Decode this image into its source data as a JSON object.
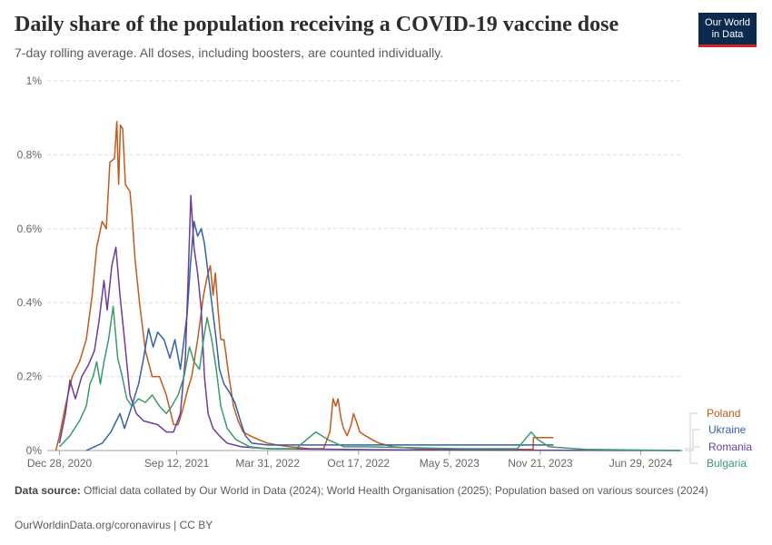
{
  "header": {
    "title": "Daily share of the population receiving a COVID-19 vaccine dose",
    "subtitle": "7-day rolling average. All doses, including boosters, are counted individually.",
    "logo_line1": "Our World",
    "logo_line2": "in Data"
  },
  "footer": {
    "source_label": "Data source:",
    "source_text": "Official data collated by Our World in Data (2024); World Health Organisation (2025); Population based on various sources (2024)",
    "credit": "OurWorldinData.org/coronavirus | CC BY"
  },
  "chart_data": {
    "type": "line",
    "title": "Daily share of the population receiving a COVID-19 vaccine dose",
    "subtitle": "7-day rolling average. All doses, including boosters, are counted individually.",
    "xlabel": "",
    "ylabel": "",
    "y_unit": "%",
    "ylim": [
      0,
      1
    ],
    "xlim": [
      "2020-12-01",
      "2024-09-30"
    ],
    "yticks": [
      0,
      0.2,
      0.4,
      0.6,
      0.8,
      1
    ],
    "ytick_labels": [
      "0%",
      "0.2%",
      "0.4%",
      "0.6%",
      "0.8%",
      "1%"
    ],
    "xticks": [
      "2020-12-28",
      "2021-09-12",
      "2022-03-31",
      "2022-10-17",
      "2023-05-05",
      "2023-11-21",
      "2024-06-29"
    ],
    "xtick_labels": [
      "Dec 28, 2020",
      "Sep 12, 2021",
      "Mar 31, 2022",
      "Oct 17, 2022",
      "May 5, 2023",
      "Nov 21, 2023",
      "Jun 29, 2024"
    ],
    "grid": "horizontal dashed",
    "legend": "right, labels at line ends",
    "series": [
      {
        "name": "Poland",
        "color": "#c15a1c",
        "points": [
          [
            "2020-12-20",
            0.0
          ],
          [
            "2020-12-28",
            0.04
          ],
          [
            "2021-01-10",
            0.12
          ],
          [
            "2021-01-25",
            0.2
          ],
          [
            "2021-02-10",
            0.24
          ],
          [
            "2021-02-25",
            0.3
          ],
          [
            "2021-03-10",
            0.42
          ],
          [
            "2021-03-20",
            0.55
          ],
          [
            "2021-04-01",
            0.62
          ],
          [
            "2021-04-10",
            0.6
          ],
          [
            "2021-04-18",
            0.78
          ],
          [
            "2021-04-28",
            0.79
          ],
          [
            "2021-05-03",
            0.89
          ],
          [
            "2021-05-07",
            0.72
          ],
          [
            "2021-05-11",
            0.88
          ],
          [
            "2021-05-16",
            0.87
          ],
          [
            "2021-05-22",
            0.72
          ],
          [
            "2021-06-01",
            0.7
          ],
          [
            "2021-06-06",
            0.63
          ],
          [
            "2021-06-12",
            0.52
          ],
          [
            "2021-06-22",
            0.4
          ],
          [
            "2021-07-05",
            0.27
          ],
          [
            "2021-07-20",
            0.2
          ],
          [
            "2021-08-05",
            0.2
          ],
          [
            "2021-08-20",
            0.15
          ],
          [
            "2021-09-05",
            0.07
          ],
          [
            "2021-09-15",
            0.07
          ],
          [
            "2021-09-25",
            0.11
          ],
          [
            "2021-10-05",
            0.16
          ],
          [
            "2021-10-15",
            0.2
          ],
          [
            "2021-10-28",
            0.3
          ],
          [
            "2021-11-10",
            0.42
          ],
          [
            "2021-11-18",
            0.47
          ],
          [
            "2021-11-25",
            0.5
          ],
          [
            "2021-12-01",
            0.42
          ],
          [
            "2021-12-06",
            0.48
          ],
          [
            "2021-12-12",
            0.38
          ],
          [
            "2021-12-18",
            0.3
          ],
          [
            "2021-12-25",
            0.3
          ],
          [
            "2022-01-05",
            0.2
          ],
          [
            "2022-01-15",
            0.12
          ],
          [
            "2022-01-25",
            0.08
          ],
          [
            "2022-02-05",
            0.05
          ],
          [
            "2022-02-20",
            0.04
          ],
          [
            "2022-03-10",
            0.03
          ],
          [
            "2022-03-31",
            0.02
          ],
          [
            "2022-04-20",
            0.015
          ],
          [
            "2022-05-20",
            0.01
          ],
          [
            "2022-07-01",
            0.005
          ],
          [
            "2022-08-01",
            0.005
          ],
          [
            "2022-08-15",
            0.05
          ],
          [
            "2022-08-22",
            0.14
          ],
          [
            "2022-08-28",
            0.12
          ],
          [
            "2022-09-02",
            0.14
          ],
          [
            "2022-09-08",
            0.09
          ],
          [
            "2022-09-14",
            0.06
          ],
          [
            "2022-09-22",
            0.04
          ],
          [
            "2022-10-01",
            0.07
          ],
          [
            "2022-10-06",
            0.1
          ],
          [
            "2022-10-12",
            0.08
          ],
          [
            "2022-10-20",
            0.05
          ],
          [
            "2022-11-01",
            0.04
          ],
          [
            "2022-11-15",
            0.03
          ],
          [
            "2022-12-01",
            0.02
          ],
          [
            "2023-01-01",
            0.01
          ],
          [
            "2023-03-01",
            0.005
          ],
          [
            "2023-06-01",
            0.003
          ],
          [
            "2023-09-01",
            0.003
          ],
          [
            "2023-11-05",
            0.003
          ],
          [
            "2023-11-06",
            0.035
          ],
          [
            "2023-12-20",
            0.035
          ]
        ]
      },
      {
        "name": "Ukraine",
        "color": "#3360a9",
        "points": [
          [
            "2021-02-25",
            0.0
          ],
          [
            "2021-04-01",
            0.02
          ],
          [
            "2021-04-20",
            0.05
          ],
          [
            "2021-05-10",
            0.1
          ],
          [
            "2021-05-20",
            0.06
          ],
          [
            "2021-06-05",
            0.12
          ],
          [
            "2021-06-20",
            0.18
          ],
          [
            "2021-07-01",
            0.25
          ],
          [
            "2021-07-12",
            0.33
          ],
          [
            "2021-07-22",
            0.28
          ],
          [
            "2021-08-01",
            0.32
          ],
          [
            "2021-08-15",
            0.3
          ],
          [
            "2021-08-28",
            0.25
          ],
          [
            "2021-09-08",
            0.3
          ],
          [
            "2021-09-20",
            0.22
          ],
          [
            "2021-09-28",
            0.3
          ],
          [
            "2021-10-05",
            0.37
          ],
          [
            "2021-10-12",
            0.5
          ],
          [
            "2021-10-20",
            0.62
          ],
          [
            "2021-10-28",
            0.58
          ],
          [
            "2021-11-05",
            0.6
          ],
          [
            "2021-11-12",
            0.56
          ],
          [
            "2021-11-20",
            0.48
          ],
          [
            "2021-11-28",
            0.4
          ],
          [
            "2021-12-06",
            0.32
          ],
          [
            "2021-12-15",
            0.22
          ],
          [
            "2021-12-25",
            0.18
          ],
          [
            "2022-01-05",
            0.16
          ],
          [
            "2022-01-18",
            0.13
          ],
          [
            "2022-01-30",
            0.08
          ],
          [
            "2022-02-10",
            0.04
          ],
          [
            "2022-02-24",
            0.02
          ],
          [
            "2022-03-31",
            0.015
          ],
          [
            "2022-12-01",
            0.015
          ],
          [
            "2023-12-20",
            0.015
          ]
        ]
      },
      {
        "name": "Romania",
        "color": "#6a3d9a",
        "points": [
          [
            "2020-12-28",
            0.02
          ],
          [
            "2021-01-10",
            0.1
          ],
          [
            "2021-01-20",
            0.19
          ],
          [
            "2021-02-01",
            0.14
          ],
          [
            "2021-02-15",
            0.2
          ],
          [
            "2021-03-01",
            0.23
          ],
          [
            "2021-03-15",
            0.27
          ],
          [
            "2021-03-25",
            0.35
          ],
          [
            "2021-04-05",
            0.46
          ],
          [
            "2021-04-12",
            0.38
          ],
          [
            "2021-04-22",
            0.5
          ],
          [
            "2021-05-01",
            0.55
          ],
          [
            "2021-05-10",
            0.42
          ],
          [
            "2021-05-20",
            0.3
          ],
          [
            "2021-06-01",
            0.15
          ],
          [
            "2021-06-15",
            0.1
          ],
          [
            "2021-07-01",
            0.08
          ],
          [
            "2021-08-01",
            0.07
          ],
          [
            "2021-08-20",
            0.05
          ],
          [
            "2021-09-05",
            0.05
          ],
          [
            "2021-09-20",
            0.1
          ],
          [
            "2021-10-01",
            0.25
          ],
          [
            "2021-10-08",
            0.5
          ],
          [
            "2021-10-13",
            0.69
          ],
          [
            "2021-10-20",
            0.55
          ],
          [
            "2021-10-28",
            0.48
          ],
          [
            "2021-11-05",
            0.38
          ],
          [
            "2021-11-12",
            0.2
          ],
          [
            "2021-11-20",
            0.1
          ],
          [
            "2021-12-01",
            0.06
          ],
          [
            "2021-12-15",
            0.04
          ],
          [
            "2022-01-01",
            0.02
          ],
          [
            "2022-02-01",
            0.01
          ],
          [
            "2022-04-01",
            0.005
          ],
          [
            "2023-01-01",
            0.002
          ],
          [
            "2024-09-25",
            0.0
          ]
        ]
      },
      {
        "name": "Bulgaria",
        "color": "#3b9a6c",
        "points": [
          [
            "2020-12-28",
            0.01
          ],
          [
            "2021-01-20",
            0.04
          ],
          [
            "2021-02-10",
            0.08
          ],
          [
            "2021-02-25",
            0.12
          ],
          [
            "2021-03-05",
            0.18
          ],
          [
            "2021-03-12",
            0.2
          ],
          [
            "2021-03-20",
            0.24
          ],
          [
            "2021-03-28",
            0.18
          ],
          [
            "2021-04-05",
            0.24
          ],
          [
            "2021-04-15",
            0.3
          ],
          [
            "2021-04-25",
            0.39
          ],
          [
            "2021-05-05",
            0.25
          ],
          [
            "2021-05-15",
            0.2
          ],
          [
            "2021-05-25",
            0.14
          ],
          [
            "2021-06-05",
            0.12
          ],
          [
            "2021-06-20",
            0.14
          ],
          [
            "2021-07-05",
            0.13
          ],
          [
            "2021-07-20",
            0.15
          ],
          [
            "2021-08-05",
            0.12
          ],
          [
            "2021-08-20",
            0.1
          ],
          [
            "2021-09-01",
            0.12
          ],
          [
            "2021-09-15",
            0.15
          ],
          [
            "2021-09-28",
            0.2
          ],
          [
            "2021-10-10",
            0.28
          ],
          [
            "2021-10-20",
            0.24
          ],
          [
            "2021-11-01",
            0.22
          ],
          [
            "2021-11-10",
            0.3
          ],
          [
            "2021-11-18",
            0.36
          ],
          [
            "2021-11-28",
            0.3
          ],
          [
            "2021-12-08",
            0.22
          ],
          [
            "2021-12-18",
            0.12
          ],
          [
            "2022-01-01",
            0.06
          ],
          [
            "2022-01-20",
            0.03
          ],
          [
            "2022-02-20",
            0.01
          ],
          [
            "2022-04-01",
            0.005
          ],
          [
            "2022-06-01",
            0.005
          ],
          [
            "2022-07-15",
            0.05
          ],
          [
            "2022-08-10",
            0.03
          ],
          [
            "2022-09-15",
            0.01
          ],
          [
            "2022-11-01",
            0.01
          ],
          [
            "2023-06-01",
            0.005
          ],
          [
            "2023-10-01",
            0.005
          ],
          [
            "2023-10-25",
            0.04
          ],
          [
            "2023-11-01",
            0.05
          ],
          [
            "2023-11-15",
            0.03
          ],
          [
            "2023-12-10",
            0.01
          ],
          [
            "2024-03-01",
            0.003
          ],
          [
            "2024-09-25",
            0.0
          ]
        ]
      }
    ]
  }
}
